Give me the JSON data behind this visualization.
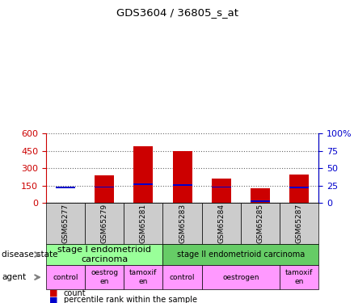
{
  "title": "GDS3604 / 36805_s_at",
  "samples": [
    "GSM65277",
    "GSM65279",
    "GSM65281",
    "GSM65283",
    "GSM65284",
    "GSM65285",
    "GSM65287"
  ],
  "count_values": [
    5,
    240,
    490,
    450,
    210,
    130,
    245
  ],
  "percentile_values": [
    22,
    23,
    27,
    26,
    23,
    3,
    22
  ],
  "percentile_scale": 6.0,
  "ylim_left": [
    0,
    600
  ],
  "ylim_right": [
    0,
    100
  ],
  "yticks_left": [
    0,
    150,
    300,
    450,
    600
  ],
  "yticks_right": [
    0,
    25,
    50,
    75,
    100
  ],
  "bar_color": "#cc0000",
  "percentile_color": "#0000cc",
  "disease_state": [
    {
      "label": "stage I endometrioid\ncarcinoma",
      "samples": [
        0,
        1,
        2
      ],
      "color": "#99ff99"
    },
    {
      "label": "stage II endometrioid carcinoma",
      "samples": [
        3,
        4,
        5,
        6
      ],
      "color": "#66cc66"
    }
  ],
  "agent": [
    {
      "label": "control",
      "samples": [
        0
      ],
      "color": "#ff99ff"
    },
    {
      "label": "oestrog\nen",
      "samples": [
        1
      ],
      "color": "#ff99ff"
    },
    {
      "label": "tamoxif\nen",
      "samples": [
        2
      ],
      "color": "#ff99ff"
    },
    {
      "label": "control",
      "samples": [
        3
      ],
      "color": "#ff99ff"
    },
    {
      "label": "oestrogen",
      "samples": [
        4,
        5
      ],
      "color": "#ff99ff"
    },
    {
      "label": "tamoxif\nen",
      "samples": [
        6
      ],
      "color": "#ff99ff"
    }
  ],
  "sample_box_color": "#cccccc",
  "left_axis_color": "#cc0000",
  "right_axis_color": "#0000cc",
  "background_color": "#ffffff"
}
